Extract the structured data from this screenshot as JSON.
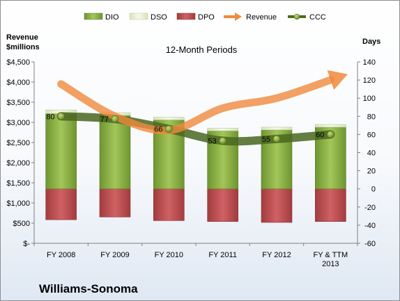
{
  "company": "Williams-Sonoma",
  "chart_data": {
    "type": "bar",
    "subtitle": "12-Month Periods",
    "left_axis": {
      "label_line1": "Revenue",
      "label_line2": "$millions",
      "ticks": [
        "$-",
        "$500",
        "$1,000",
        "$1,500",
        "$2,000",
        "$2,500",
        "$3,000",
        "$3,500",
        "$4,000",
        "$4,500"
      ],
      "ylim": [
        0,
        4500
      ]
    },
    "right_axis": {
      "label": "Days",
      "ticks": [
        "-60",
        "-40",
        "-20",
        "0",
        "20",
        "40",
        "60",
        "80",
        "100",
        "120",
        "140"
      ],
      "ylim": [
        -60,
        140
      ]
    },
    "categories": [
      {
        "line1": "FY 2008",
        "line2": ""
      },
      {
        "line1": "FY 2009",
        "line2": ""
      },
      {
        "line1": "FY 2010",
        "line2": ""
      },
      {
        "line1": "FY 2011",
        "line2": ""
      },
      {
        "line1": "FY 2012",
        "line2": ""
      },
      {
        "line1": "FY & TTM",
        "line2": "2013"
      }
    ],
    "legend": [
      "DIO",
      "DSO",
      "DPO",
      "Revenue",
      "CCC"
    ],
    "legend_position": "top",
    "grid": false,
    "series": [
      {
        "name": "DIO",
        "axis": "right",
        "color": "#7ea13a",
        "values": [
          83,
          81,
          76,
          64,
          65,
          68
        ]
      },
      {
        "name": "DSO",
        "axis": "right",
        "color": "#e8f0d2",
        "values": [
          4,
          3,
          3,
          3,
          3,
          3
        ]
      },
      {
        "name": "DPO",
        "axis": "right",
        "color": "#b9484a",
        "values": [
          -34,
          -31,
          -35,
          -36,
          -37,
          -36
        ]
      },
      {
        "name": "Revenue",
        "axis": "left",
        "color": "#f08a3c",
        "values": [
          3950,
          3150,
          2800,
          3350,
          3600,
          4050
        ]
      },
      {
        "name": "CCC",
        "axis": "right",
        "color": "#4f6b1f",
        "values": [
          80,
          77,
          66,
          53,
          55,
          60
        ],
        "labels": [
          "80",
          "77",
          "66",
          "53",
          "55",
          "60"
        ]
      }
    ]
  }
}
